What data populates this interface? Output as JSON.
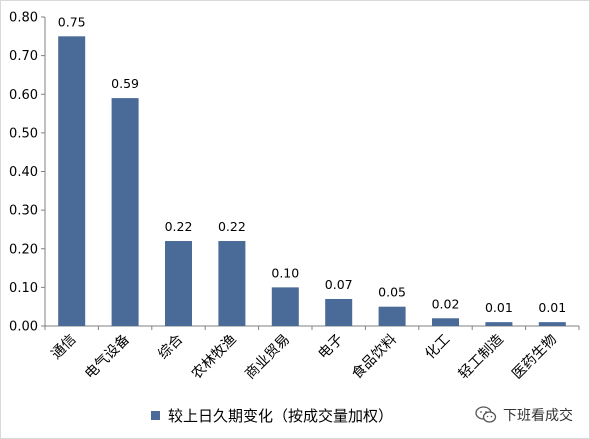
{
  "chart_data": {
    "type": "bar",
    "categories": [
      "通信",
      "电气设备",
      "综合",
      "农林牧渔",
      "商业贸易",
      "电子",
      "食品饮料",
      "化工",
      "轻工制造",
      "医药生物"
    ],
    "series": [
      {
        "name": "较上日久期变化（按成交量加权）",
        "values": [
          0.75,
          0.59,
          0.22,
          0.22,
          0.1,
          0.07,
          0.05,
          0.02,
          0.01,
          0.01
        ]
      }
    ],
    "data_labels": [
      "0.75",
      "0.59",
      "0.22",
      "0.22",
      "0.10",
      "0.07",
      "0.05",
      "0.02",
      "0.01",
      "0.01"
    ],
    "y_ticks": [
      "0.00",
      "0.10",
      "0.20",
      "0.30",
      "0.40",
      "0.50",
      "0.60",
      "0.70",
      "0.80"
    ],
    "ylim": [
      0,
      0.8
    ],
    "grid": false,
    "legend_position": "bottom",
    "bar_color": "#4a6a97"
  },
  "legend": {
    "label": "较上日久期变化（按成交量加权）"
  },
  "watermark": {
    "icon": "wechat-icon",
    "text": "下班看成交"
  }
}
